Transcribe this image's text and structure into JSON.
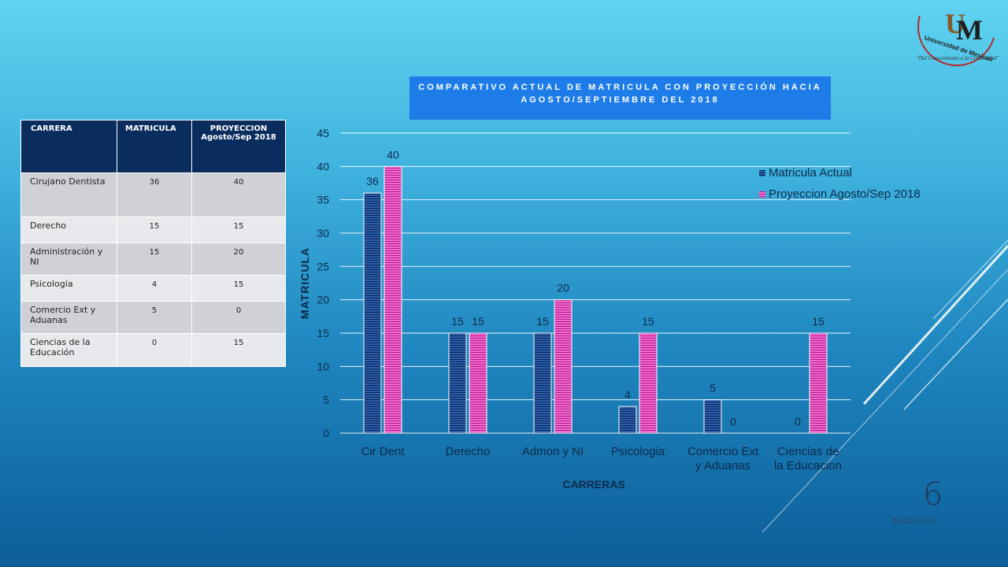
{
  "logo": {
    "letters": "UM",
    "name": "Universidad de Mexicali",
    "tagline": "\"Del Conocimiento a la Creatividad\""
  },
  "table": {
    "headers": {
      "carrera": "CARRERA",
      "matricula": "MATRICULA",
      "proyeccion": "PROYECCION Agosto/Sep 2018"
    },
    "rows": [
      {
        "carrera": "Cirujano Dentista",
        "matricula": "36",
        "proyeccion": "40"
      },
      {
        "carrera": "Derecho",
        "matricula": "15",
        "proyeccion": "15"
      },
      {
        "carrera": "Administración y NI",
        "matricula": "15",
        "proyeccion": "20"
      },
      {
        "carrera": "Psicología",
        "matricula": "4",
        "proyeccion": "15"
      },
      {
        "carrera": "Comercio Ext y Aduanas",
        "matricula": "5",
        "proyeccion": "0"
      },
      {
        "carrera": "Ciencias de la Educación",
        "matricula": "0",
        "proyeccion": "15"
      }
    ]
  },
  "chart_data": {
    "type": "bar",
    "title": "COMPARATIVO ACTUAL DE MATRICULA CON PROYECCIÓN HACIA AGOSTO/SEPTIEMBRE DEL 2018",
    "xlabel": "CARRERAS",
    "ylabel": "MATRICULA",
    "ylim": [
      0,
      45
    ],
    "yticks": [
      0,
      5,
      10,
      15,
      20,
      25,
      30,
      35,
      40,
      45
    ],
    "grid": true,
    "legend_position": "top-right",
    "categories": [
      [
        "Cir Dent"
      ],
      [
        "Derecho"
      ],
      [
        "Admon y NI"
      ],
      [
        "Psicologia"
      ],
      [
        "Comercio Ext",
        "y Aduanas"
      ],
      [
        "Ciencias de",
        "la Educacion"
      ]
    ],
    "series": [
      {
        "name": "Matricula Actual",
        "values": [
          36,
          15,
          15,
          4,
          5,
          0
        ],
        "color": "#1f3f82"
      },
      {
        "name": "Proyeccion Agosto/Sep 2018",
        "values": [
          40,
          15,
          20,
          15,
          0,
          15
        ],
        "color": "#e040b8"
      }
    ]
  },
  "footer": {
    "slide_number": "6",
    "date": "25/01/2019"
  }
}
